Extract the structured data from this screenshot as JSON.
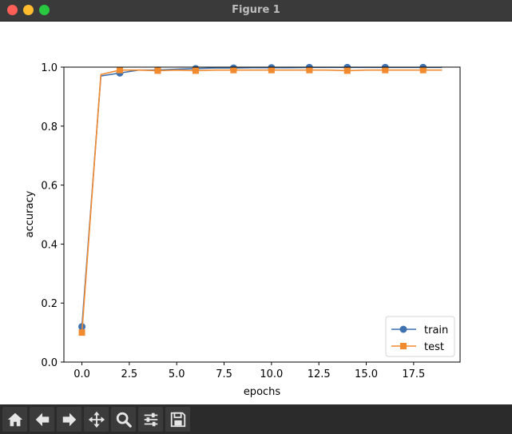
{
  "window": {
    "title": "Figure 1"
  },
  "toolbar": {
    "icons": [
      "home-icon",
      "back-arrow-icon",
      "forward-arrow-icon",
      "pan-icon",
      "zoom-icon",
      "configure-subplots-icon",
      "save-icon"
    ]
  },
  "colors": {
    "train": "#3f72af",
    "test": "#f28a30"
  },
  "chart_data": {
    "type": "line",
    "title": "",
    "xlabel": "epochs",
    "ylabel": "accuracy",
    "xlim": [
      -0.95,
      19.95
    ],
    "ylim": [
      0.0,
      1.0
    ],
    "xticks": [
      0.0,
      2.5,
      5.0,
      7.5,
      10.0,
      12.5,
      15.0,
      17.5
    ],
    "xtick_labels": [
      "0.0",
      "2.5",
      "5.0",
      "7.5",
      "10.0",
      "12.5",
      "15.0",
      "17.5"
    ],
    "yticks": [
      0.0,
      0.2,
      0.4,
      0.6,
      0.8,
      1.0
    ],
    "ytick_labels": [
      "0.0",
      "0.2",
      "0.4",
      "0.6",
      "0.8",
      "1.0"
    ],
    "grid": false,
    "legend": "lower-right",
    "x": [
      0,
      1,
      2,
      3,
      4,
      5,
      6,
      7,
      8,
      9,
      10,
      11,
      12,
      13,
      14,
      15,
      16,
      17,
      18,
      19
    ],
    "marker_every": 2,
    "series": [
      {
        "name": "train",
        "marker": "circle",
        "values": [
          0.12,
          0.97,
          0.98,
          0.99,
          0.99,
          0.993,
          0.995,
          0.997,
          0.997,
          0.998,
          0.998,
          0.998,
          0.999,
          0.999,
          0.999,
          0.999,
          0.999,
          0.999,
          0.999,
          0.999
        ]
      },
      {
        "name": "test",
        "marker": "square",
        "values": [
          0.1,
          0.975,
          0.99,
          0.99,
          0.988,
          0.99,
          0.988,
          0.99,
          0.99,
          0.99,
          0.99,
          0.99,
          0.99,
          0.99,
          0.988,
          0.99,
          0.99,
          0.99,
          0.99,
          0.99
        ]
      }
    ]
  }
}
